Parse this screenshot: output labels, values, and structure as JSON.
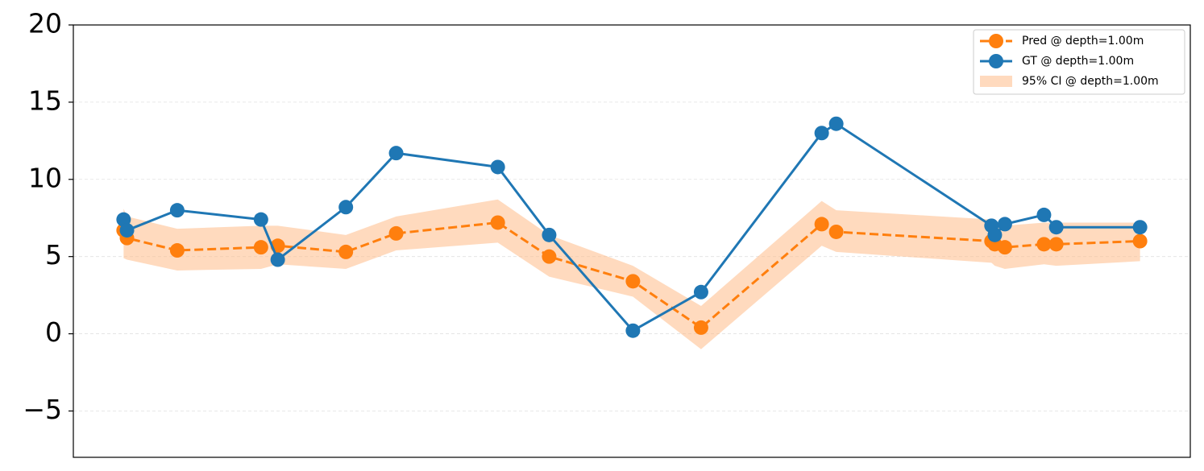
{
  "chart_data": {
    "type": "line",
    "x": [
      4.5,
      4.8,
      9.3,
      16.8,
      18.3,
      24.4,
      28.9,
      38.0,
      42.6,
      50.1,
      56.2,
      67.0,
      68.3,
      82.2,
      82.5,
      83.4,
      86.9,
      88.0,
      95.5
    ],
    "xlim": [
      0,
      100
    ],
    "ylim": [
      -8,
      20
    ],
    "yticks": [
      {
        "value": -5,
        "label": "−5"
      },
      0,
      5,
      10,
      15,
      20
    ],
    "grid": true,
    "legend": "upper right",
    "series": [
      {
        "name": "Pred @ depth=1.00m",
        "color": "#ff7f0e",
        "linestyle": "dashed",
        "values": [
          6.7,
          6.2,
          5.4,
          5.6,
          5.7,
          5.3,
          6.5,
          7.2,
          5.0,
          3.4,
          0.4,
          7.1,
          6.6,
          6.0,
          5.8,
          5.6,
          5.8,
          5.8,
          6.0
        ]
      },
      {
        "name": "GT @ depth=1.00m",
        "color": "#1f77b4",
        "linestyle": "solid",
        "values": [
          7.4,
          6.7,
          8.0,
          7.4,
          4.8,
          8.2,
          11.7,
          10.8,
          6.4,
          0.2,
          2.7,
          13.0,
          13.6,
          7.0,
          6.4,
          7.1,
          7.7,
          6.9,
          6.9
        ]
      }
    ],
    "band": {
      "name": "95% CI @ depth=1.00m",
      "color": "#ffbb88",
      "lower": [
        4.9,
        4.8,
        4.1,
        4.2,
        4.5,
        4.2,
        5.4,
        5.9,
        3.7,
        2.4,
        -1.0,
        5.7,
        5.3,
        4.6,
        4.4,
        4.2,
        4.5,
        4.4,
        4.7
      ],
      "upper": [
        8.1,
        7.6,
        6.8,
        7.0,
        7.0,
        6.4,
        7.6,
        8.7,
        6.4,
        4.4,
        1.8,
        8.6,
        8.0,
        7.4,
        7.2,
        7.0,
        7.2,
        7.2,
        7.2
      ]
    }
  }
}
